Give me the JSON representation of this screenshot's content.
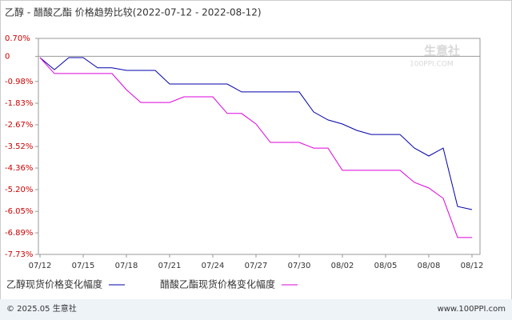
{
  "chart_data": {
    "type": "line",
    "title": "乙醇 - 醋酸乙酯 价格趋势比较(2022-07-12 - 2022-08-12)",
    "watermark": "生意社",
    "watermark_url": "100PPI.COM",
    "footer_left": "© 2025.05 生意社",
    "footer_right": "www.100PPI.com",
    "categories": [
      "07/12",
      null,
      null,
      "07/15",
      null,
      null,
      "07/18",
      null,
      null,
      "07/21",
      null,
      null,
      "07/24",
      null,
      null,
      "07/27",
      null,
      null,
      "07/30",
      null,
      null,
      "08/02",
      null,
      null,
      "08/05",
      null,
      null,
      "08/08",
      null,
      null,
      "08/12"
    ],
    "series": [
      {
        "name": "乙醇现货价格变化幅度",
        "color": "#0000aa",
        "values": [
          -0.05,
          -0.52,
          -0.05,
          -0.05,
          -0.45,
          -0.45,
          -0.55,
          -0.55,
          -0.55,
          -1.08,
          -1.08,
          -1.08,
          -1.08,
          -1.08,
          -1.39,
          -1.39,
          -1.39,
          -1.39,
          -1.39,
          -2.17,
          -2.48,
          -2.64,
          -2.89,
          -3.05,
          -3.05,
          -3.05,
          -3.58,
          -3.89,
          -3.58,
          -5.86,
          -5.98
        ]
      },
      {
        "name": "醋酸乙酯现货价格变化幅度",
        "color": "#dd00dd",
        "values": [
          -0.05,
          -0.67,
          -0.67,
          -0.67,
          -0.67,
          -0.67,
          -1.3,
          -1.8,
          -1.8,
          -1.8,
          -1.58,
          -1.58,
          -1.58,
          -2.23,
          -2.23,
          -2.64,
          -3.36,
          -3.36,
          -3.36,
          -3.58,
          -3.58,
          -4.45,
          -4.45,
          -4.45,
          -4.45,
          -4.45,
          -4.92,
          -5.14,
          -5.54,
          -7.07,
          -7.07
        ]
      }
    ],
    "ylim": [
      -7.73,
      0.7
    ],
    "yticks": [
      {
        "value": 0.7,
        "label": "0.70%"
      },
      0,
      {
        "value": -0.98,
        "label": "-0.98%"
      },
      {
        "value": -1.83,
        "label": "-1.83%"
      },
      {
        "value": -2.67,
        "label": "-2.67%"
      },
      {
        "value": -3.52,
        "label": "-3.52%"
      },
      {
        "value": -4.36,
        "label": "-4.36%"
      },
      {
        "value": -5.2,
        "label": "-5.20%"
      },
      {
        "value": -6.05,
        "label": "-6.05%"
      },
      {
        "value": -6.89,
        "label": "-6.89%"
      },
      {
        "value": -7.73,
        "label": "-7.73%"
      }
    ],
    "grid": false
  }
}
